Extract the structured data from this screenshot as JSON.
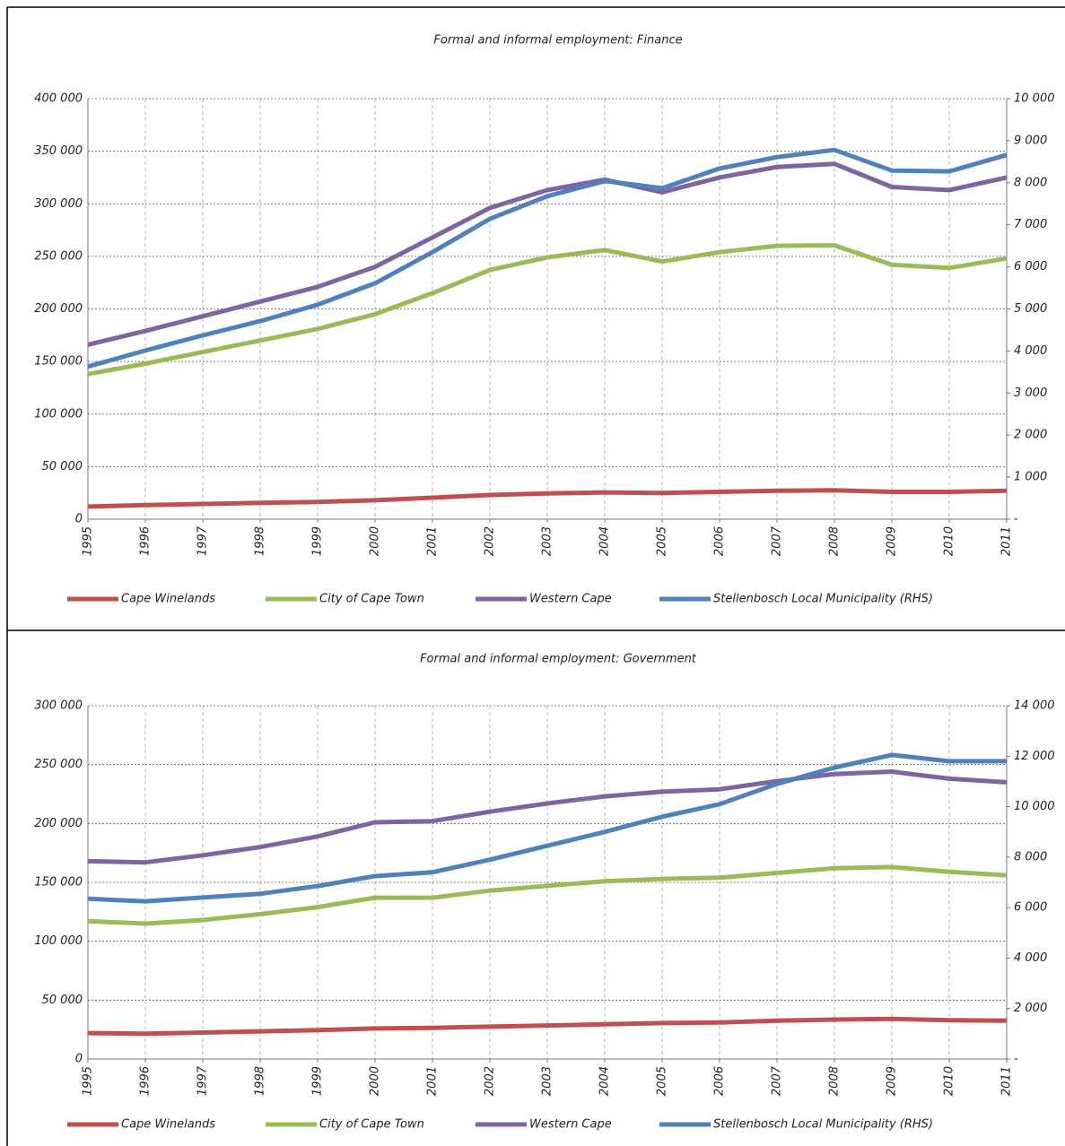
{
  "chart_data": [
    {
      "type": "line",
      "title": "Formal and informal employment: Finance",
      "categories": [
        "1995",
        "1996",
        "1997",
        "1998",
        "1999",
        "2000",
        "2001",
        "2002",
        "2003",
        "2004",
        "2005",
        "2006",
        "2007",
        "2008",
        "2009",
        "2010",
        "2011"
      ],
      "ylim": [
        0,
        400000
      ],
      "yticks": [
        0,
        {
          "value": 50000,
          "label": "50 000"
        },
        {
          "value": 100000,
          "label": "100 000"
        },
        {
          "value": 150000,
          "label": "150 000"
        },
        {
          "value": 200000,
          "label": "200 000"
        },
        {
          "value": 250000,
          "label": "250 000"
        },
        {
          "value": 300000,
          "label": "300 000"
        },
        {
          "value": 350000,
          "label": "350 000"
        },
        {
          "value": 400000,
          "label": "400 000"
        }
      ],
      "y2lim": [
        0,
        10000
      ],
      "y2ticks": [
        {
          "value": 0,
          "label": "-"
        },
        {
          "value": 1000,
          "label": "1 000"
        },
        {
          "value": 2000,
          "label": "2 000"
        },
        {
          "value": 3000,
          "label": "3 000"
        },
        {
          "value": 4000,
          "label": "4 000"
        },
        {
          "value": 5000,
          "label": "5 000"
        },
        {
          "value": 6000,
          "label": "6 000"
        },
        {
          "value": 7000,
          "label": "7 000"
        },
        {
          "value": 8000,
          "label": "8 000"
        },
        {
          "value": 9000,
          "label": "9 000"
        },
        {
          "value": 10000,
          "label": "10 000"
        }
      ],
      "grid": true,
      "series": [
        {
          "name": "Cape Winelands",
          "color": "#c0504d",
          "values": [
            12000,
            13500,
            14500,
            15500,
            16500,
            18000,
            20500,
            23000,
            24500,
            25500,
            25000,
            26000,
            27000,
            27500,
            26000,
            26000,
            27000
          ]
        },
        {
          "name": "City of Cape Town",
          "color": "#9bbb59",
          "values": [
            138000,
            148000,
            159000,
            170000,
            181000,
            195000,
            215000,
            237000,
            249000,
            256000,
            245000,
            254000,
            260000,
            260500,
            242000,
            239000,
            248000
          ]
        },
        {
          "name": "Western Cape",
          "color": "#8064a2",
          "values": [
            166000,
            179000,
            193000,
            207000,
            221000,
            240000,
            268000,
            296000,
            313000,
            323000,
            311000,
            325000,
            335000,
            338000,
            316000,
            313000,
            325000
          ]
        },
        {
          "name": "Stellenbosch Local Municipality (RHS)",
          "color": "#4f81bd",
          "axis": "y2",
          "values": [
            3630,
            4010,
            4370,
            4710,
            5100,
            5610,
            6350,
            7140,
            7680,
            8040,
            7870,
            8340,
            8610,
            8780,
            8290,
            8270,
            8660
          ]
        }
      ]
    },
    {
      "type": "line",
      "title": "Formal and informal employment: Government",
      "categories": [
        "1995",
        "1996",
        "1997",
        "1998",
        "1999",
        "2000",
        "2001",
        "2002",
        "2003",
        "2004",
        "2005",
        "2006",
        "2007",
        "2008",
        "2009",
        "2010",
        "2011"
      ],
      "ylim": [
        0,
        300000
      ],
      "yticks": [
        0,
        {
          "value": 50000,
          "label": "50 000"
        },
        {
          "value": 100000,
          "label": "100 000"
        },
        {
          "value": 150000,
          "label": "150 000"
        },
        {
          "value": 200000,
          "label": "200 000"
        },
        {
          "value": 250000,
          "label": "250 000"
        },
        {
          "value": 300000,
          "label": "300 000"
        }
      ],
      "y2lim": [
        0,
        14000
      ],
      "y2ticks": [
        {
          "value": 0,
          "label": "-"
        },
        {
          "value": 2000,
          "label": "2 000"
        },
        {
          "value": 4000,
          "label": "4 000"
        },
        {
          "value": 6000,
          "label": "6 000"
        },
        {
          "value": 8000,
          "label": "8 000"
        },
        {
          "value": 10000,
          "label": "10 000"
        },
        {
          "value": 12000,
          "label": "12 000"
        },
        {
          "value": 14000,
          "label": "14 000"
        }
      ],
      "grid": true,
      "series": [
        {
          "name": "Cape Winelands",
          "color": "#c0504d",
          "values": [
            22000,
            21500,
            22500,
            23500,
            24500,
            26000,
            26500,
            27500,
            28500,
            29500,
            30500,
            31000,
            32500,
            33500,
            34000,
            33000,
            32500
          ]
        },
        {
          "name": "City of Cape Town",
          "color": "#9bbb59",
          "values": [
            117000,
            115000,
            118000,
            123000,
            129000,
            137000,
            137000,
            143000,
            147000,
            151000,
            153000,
            154000,
            158000,
            162000,
            163000,
            159000,
            156000
          ]
        },
        {
          "name": "Western Cape",
          "color": "#8064a2",
          "values": [
            168000,
            167000,
            173000,
            180000,
            189000,
            201000,
            202000,
            210000,
            217000,
            223000,
            227000,
            229000,
            236000,
            242000,
            244000,
            238000,
            235000
          ]
        },
        {
          "name": "Stellenbosch Local Municipality (RHS)",
          "color": "#4f81bd",
          "axis": "y2",
          "values": [
            6350,
            6250,
            6400,
            6550,
            6850,
            7250,
            7400,
            7900,
            8450,
            9000,
            9600,
            10100,
            10900,
            11550,
            12050,
            11800,
            11800
          ]
        }
      ]
    }
  ]
}
